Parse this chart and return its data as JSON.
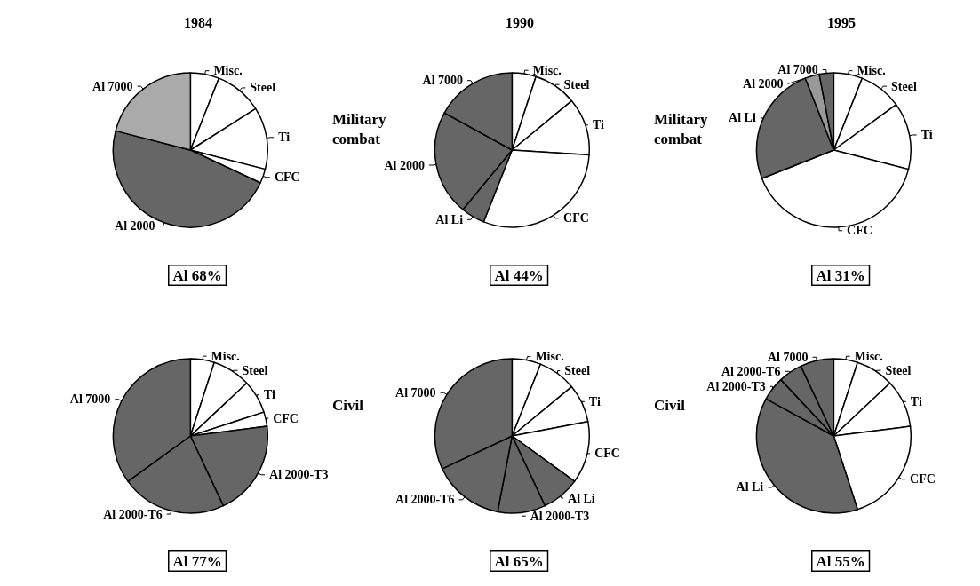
{
  "chart_data": [
    {
      "type": "pie",
      "title": "1984",
      "categories": [
        "Misc.",
        "Steel",
        "Ti",
        "CFC",
        "Al 2000",
        "Al 7000"
      ],
      "values": [
        6,
        10,
        13,
        3,
        47,
        21
      ],
      "colors": [
        "#ffffff",
        "#ffffff",
        "#ffffff",
        "#ffffff",
        "#666666",
        "#aaaaaa"
      ],
      "annotations": [
        "Al 68%"
      ]
    },
    {
      "type": "pie",
      "title": "1990",
      "categories": [
        "Misc.",
        "Steel",
        "Ti",
        "CFC",
        "Al Li",
        "Al 2000",
        "Al 7000"
      ],
      "values": [
        5,
        9,
        12,
        30,
        5,
        22,
        17
      ],
      "colors": [
        "#ffffff",
        "#ffffff",
        "#ffffff",
        "#ffffff",
        "#666666",
        "#666666",
        "#666666"
      ],
      "annotations": [
        "Al 44%",
        "Military combat"
      ]
    },
    {
      "type": "pie",
      "title": "1995",
      "categories": [
        "Misc.",
        "Steel",
        "Ti",
        "CFC",
        "Al Li",
        "Al 2000",
        "Al 7000"
      ],
      "values": [
        6,
        9,
        14,
        40,
        25,
        3,
        3
      ],
      "colors": [
        "#ffffff",
        "#ffffff",
        "#ffffff",
        "#ffffff",
        "#666666",
        "#999999",
        "#666666"
      ],
      "annotations": [
        "Al 31%",
        "Military combat"
      ]
    },
    {
      "type": "pie",
      "categories": [
        "Misc.",
        "Steel",
        "Ti",
        "CFC",
        "Al 2000-T3",
        "Al 2000-T6",
        "Al 7000"
      ],
      "values": [
        5,
        8,
        7,
        3,
        20,
        22,
        35
      ],
      "colors": [
        "#ffffff",
        "#ffffff",
        "#ffffff",
        "#ffffff",
        "#666666",
        "#666666",
        "#666666"
      ],
      "annotations": [
        "Al 77%"
      ]
    },
    {
      "type": "pie",
      "categories": [
        "Misc.",
        "Steel",
        "Ti",
        "CFC",
        "Al Li",
        "Al 2000-T3",
        "Al 2000-T6",
        "Al 7000"
      ],
      "values": [
        6,
        8,
        8,
        13,
        8,
        10,
        15,
        32
      ],
      "colors": [
        "#ffffff",
        "#ffffff",
        "#ffffff",
        "#ffffff",
        "#666666",
        "#666666",
        "#666666",
        "#666666"
      ],
      "annotations": [
        "Al 65%",
        "Civil"
      ]
    },
    {
      "type": "pie",
      "categories": [
        "Misc.",
        "Steel",
        "Ti",
        "CFC",
        "Al Li",
        "Al 2000-T3",
        "Al 2000-T6",
        "Al 7000"
      ],
      "values": [
        5,
        8,
        10,
        22,
        38,
        5,
        5,
        7
      ],
      "colors": [
        "#ffffff",
        "#ffffff",
        "#ffffff",
        "#ffffff",
        "#666666",
        "#666666",
        "#666666",
        "#666666"
      ],
      "annotations": [
        "Al 55%",
        "Civil"
      ]
    }
  ]
}
